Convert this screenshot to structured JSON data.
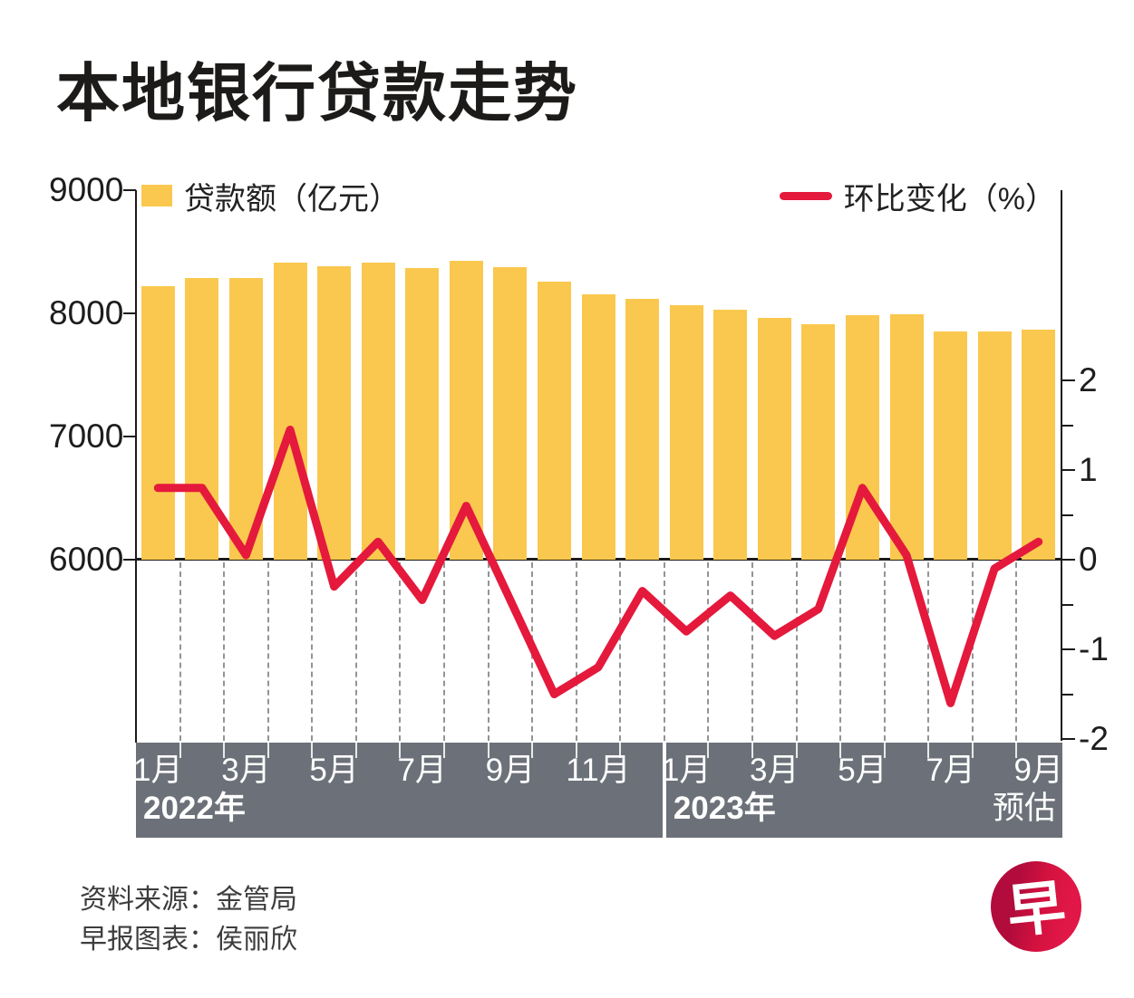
{
  "title": "本地银行贷款走势",
  "legend": {
    "bar_label": "贷款额（亿元）",
    "line_label": "环比变化（%）"
  },
  "source": {
    "line1": "资料来源：金管局",
    "line2": "早报图表：侯丽欣"
  },
  "logo": {
    "char": "早"
  },
  "colors": {
    "bar": "#FAC84E",
    "line": "#E4193C",
    "band": "#6C7179",
    "axis": "#1b1b1b",
    "grid_dash": "#8f8f8f"
  },
  "chart_data": {
    "type": "combo-bar-line",
    "categories": [
      "2022年1月",
      "2022年2月",
      "2022年3月",
      "2022年4月",
      "2022年5月",
      "2022年6月",
      "2022年7月",
      "2022年8月",
      "2022年9月",
      "2022年10月",
      "2022年11月",
      "2022年12月",
      "2023年1月",
      "2023年2月",
      "2023年3月",
      "2023年4月",
      "2023年5月",
      "2023年6月",
      "2023年7月",
      "2023年8月",
      "2023年9月"
    ],
    "series": [
      {
        "name": "贷款额（亿元）",
        "type": "bar",
        "color": "#FAC84E",
        "values": [
          8220,
          8285,
          8290,
          8410,
          8385,
          8410,
          8370,
          8425,
          8375,
          8260,
          8155,
          8120,
          8065,
          8030,
          7960,
          7915,
          7985,
          7990,
          7855,
          7855,
          7865
        ]
      },
      {
        "name": "环比变化（%）",
        "type": "line",
        "color": "#E4193C",
        "values": [
          0.8,
          0.8,
          0.05,
          1.45,
          -0.3,
          0.2,
          -0.45,
          0.6,
          -0.45,
          -1.5,
          -1.2,
          -0.35,
          -0.8,
          -0.4,
          -0.85,
          -0.55,
          0.8,
          0.05,
          -1.6,
          -0.1,
          0.2
        ]
      }
    ],
    "left_axis": {
      "ticks": [
        9000,
        8000,
        7000,
        6000
      ],
      "baseline": 6000,
      "top": 9000
    },
    "right_axis": {
      "unit": "%",
      "major_ticks": [
        2,
        1,
        0,
        -1,
        -2
      ],
      "minor_ticks": [
        1.5,
        0.5,
        -0.5,
        -1.5
      ],
      "zero_aligned_with_left": 6000
    },
    "x_axis": {
      "groups": [
        {
          "year": "2022年",
          "start_slot": 0,
          "months": [
            "1月",
            "3月",
            "5月",
            "7月",
            "9月",
            "11月"
          ]
        },
        {
          "year": "2023年",
          "start_slot": 12,
          "months": [
            "1月",
            "3月",
            "5月",
            "7月",
            "9月"
          ]
        }
      ],
      "note": "预估",
      "separator_after_slot": 12
    },
    "grid": "vertical dashed lines below zero baseline at each bar boundary",
    "legend_position": "top"
  }
}
